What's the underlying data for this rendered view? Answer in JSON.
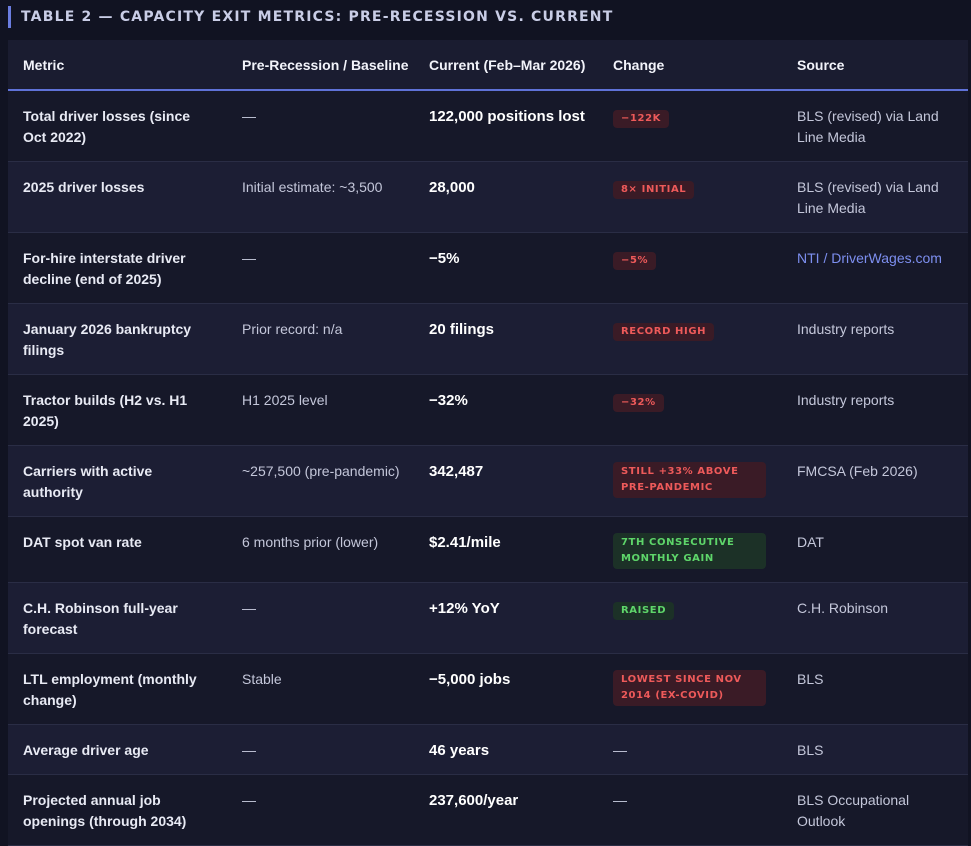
{
  "caption": "TABLE 2 — CAPACITY EXIT METRICS: PRE-RECESSION VS. CURRENT",
  "columns": [
    "Metric",
    "Pre-Recession / Baseline",
    "Current (Feb–Mar 2026)",
    "Change",
    "Source"
  ],
  "colors": {
    "accent": "#6b7de0",
    "badge_red": "#ee5a5a",
    "badge_green": "#5ed66a",
    "link": "#7d8ff0"
  },
  "rows": [
    {
      "metric": "Total driver losses (since Oct 2022)",
      "baseline": "—",
      "current": "122,000 positions lost",
      "change": "−122K",
      "change_kind": "red",
      "source": "BLS (revised) via Land Line Media"
    },
    {
      "metric": "2025 driver losses",
      "baseline": "Initial estimate: ~3,500",
      "current": "28,000",
      "change": "8× initial",
      "change_kind": "red",
      "source": "BLS (revised) via Land Line Media"
    },
    {
      "metric": "For-hire interstate driver decline (end of 2025)",
      "baseline": "—",
      "current": "−5%",
      "change": "−5%",
      "change_kind": "red",
      "source": "NTI / DriverWages.com",
      "source_link": true
    },
    {
      "metric": "January 2026 bankruptcy filings",
      "baseline": "Prior record: n/a",
      "current": "20 filings",
      "change": "Record high",
      "change_kind": "red",
      "source": "Industry reports"
    },
    {
      "metric": "Tractor builds (H2 vs. H1 2025)",
      "baseline": "H1 2025 level",
      "current": "−32%",
      "change": "−32%",
      "change_kind": "red",
      "source": "Industry reports"
    },
    {
      "metric": "Carriers with active authority",
      "baseline": "~257,500 (pre-pandemic)",
      "current": "342,487",
      "change": "Still +33% above pre-pandemic",
      "change_kind": "red-wide",
      "source": "FMCSA (Feb 2026)"
    },
    {
      "metric": "DAT spot van rate",
      "baseline": "6 months prior (lower)",
      "current": "$2.41/mile",
      "change": "7th consecutive monthly gain",
      "change_kind": "green-wide",
      "source": "DAT"
    },
    {
      "metric": "C.H. Robinson full-year forecast",
      "baseline": "—",
      "current": "+12% YoY",
      "change": "Raised",
      "change_kind": "green",
      "source": "C.H. Robinson"
    },
    {
      "metric": "LTL employment (monthly change)",
      "baseline": "Stable",
      "current": "−5,000 jobs",
      "change": "Lowest since Nov 2014 (ex-COVID)",
      "change_kind": "red-wide",
      "source": "BLS"
    },
    {
      "metric": "Average driver age",
      "baseline": "—",
      "current": "46 years",
      "change": "—",
      "change_kind": "none",
      "source": "BLS"
    },
    {
      "metric": "Projected annual job openings (through 2034)",
      "baseline": "—",
      "current": "237,600/year",
      "change": "—",
      "change_kind": "none",
      "source": "BLS Occupational Outlook"
    }
  ]
}
